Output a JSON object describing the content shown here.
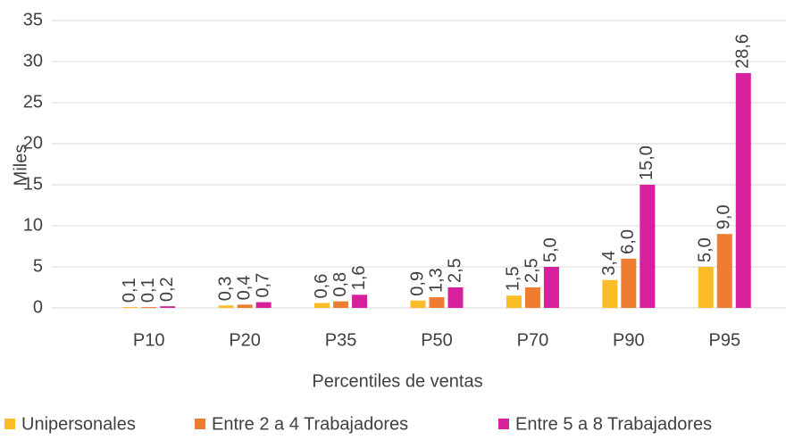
{
  "chart_data": {
    "type": "bar",
    "y_label": "Miles",
    "x_label": "Percentiles de ventas",
    "categories": [
      "P10",
      "P20",
      "P35",
      "P50",
      "P70",
      "P90",
      "P95"
    ],
    "series": [
      {
        "name": "Unipersonales",
        "color": "#fbbd25",
        "values": [
          0.1,
          0.3,
          0.6,
          0.9,
          1.5,
          3.4,
          5.0
        ],
        "value_labels": [
          "0,1",
          "0,3",
          "0,6",
          "0,9",
          "1,5",
          "3,4",
          "5,0"
        ]
      },
      {
        "name": "Entre 2 a 4 Trabajadores",
        "color": "#ee7d31",
        "values": [
          0.1,
          0.4,
          0.8,
          1.3,
          2.5,
          6.0,
          9.0
        ],
        "value_labels": [
          "0,1",
          "0,4",
          "0,8",
          "1,3",
          "2,5",
          "6,0",
          "9,0"
        ]
      },
      {
        "name": "Entre 5 a 8 Trabajadores",
        "color": "#d6209c",
        "values": [
          0.2,
          0.7,
          1.6,
          2.5,
          5.0,
          15.0,
          28.6
        ],
        "value_labels": [
          "0,2",
          "0,7",
          "1,6",
          "2,5",
          "5,0",
          "15,0",
          "28,6"
        ]
      }
    ],
    "ylim": [
      0,
      35
    ],
    "yticks": [
      0,
      5,
      10,
      15,
      20,
      25,
      30,
      35
    ],
    "grid": true,
    "legend": "bottom"
  }
}
